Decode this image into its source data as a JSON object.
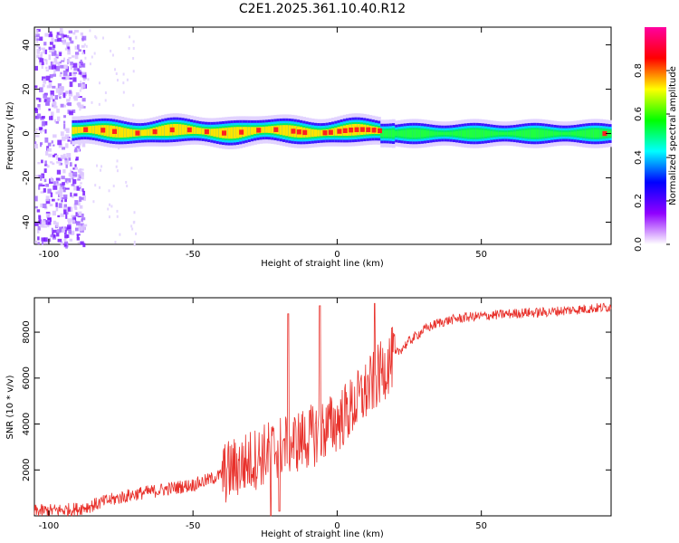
{
  "figure": {
    "title": "C2E1.2025.361.10.40.R12"
  },
  "chart_data": [
    {
      "type": "heatmap",
      "xlabel": "Height of straight line (km)",
      "ylabel": "Frequency (Hz)",
      "xlim": [
        -105,
        95
      ],
      "ylim": [
        -50,
        48
      ],
      "xticks": [
        -100,
        -50,
        0,
        50
      ],
      "yticks": [
        -40,
        -20,
        0,
        20,
        40
      ],
      "colorbar": {
        "label": "Normalized spectral amplitude",
        "range": [
          0,
          1
        ],
        "ticks": [
          0.0,
          0.2,
          0.4,
          0.6,
          0.8
        ],
        "colors": [
          "#ffffff",
          "#9000ff",
          "#0000ff",
          "#00ffff",
          "#00ff00",
          "#ffff00",
          "#ff0000",
          "#ff00a0"
        ]
      },
      "description_of_structure": {
        "noise_region_x": [
          -105,
          -90
        ],
        "line_start_x": -92,
        "line_center_hz": 0
      }
    },
    {
      "type": "line",
      "xlabel": "Height of straight line (km)",
      "ylabel": "SNR (10 * v/v)",
      "xlim": [
        -105,
        95
      ],
      "ylim": [
        0,
        9500
      ],
      "xticks": [
        -100,
        -50,
        0,
        50
      ],
      "yticks": [
        2000,
        4000,
        6000,
        8000
      ],
      "color": "#e8302a",
      "x": [
        -105,
        -95,
        -90,
        -85,
        -80,
        -75,
        -70,
        -65,
        -60,
        -55,
        -50,
        -45,
        -40,
        -35,
        -30,
        -25,
        -20,
        -15,
        -10,
        -5,
        0,
        5,
        10,
        15,
        20,
        25,
        30,
        35,
        40,
        45,
        50,
        55,
        60,
        65,
        70,
        75,
        80,
        85,
        90,
        95
      ],
      "y": [
        200,
        250,
        300,
        450,
        650,
        800,
        950,
        1050,
        1150,
        1250,
        1350,
        1550,
        1800,
        2100,
        2400,
        2700,
        3000,
        3200,
        3400,
        3700,
        4100,
        4700,
        5400,
        6200,
        7000,
        7600,
        8100,
        8400,
        8550,
        8650,
        8700,
        8750,
        8800,
        8850,
        8850,
        8900,
        8950,
        9000,
        9050,
        9100
      ],
      "spikes": [
        {
          "x": -17,
          "y": 8800
        },
        {
          "x": -6,
          "y": 9150
        },
        {
          "x": 13,
          "y": 9250
        },
        {
          "x": -20,
          "y": 200
        },
        {
          "x": -23,
          "y": 0
        }
      ]
    }
  ]
}
